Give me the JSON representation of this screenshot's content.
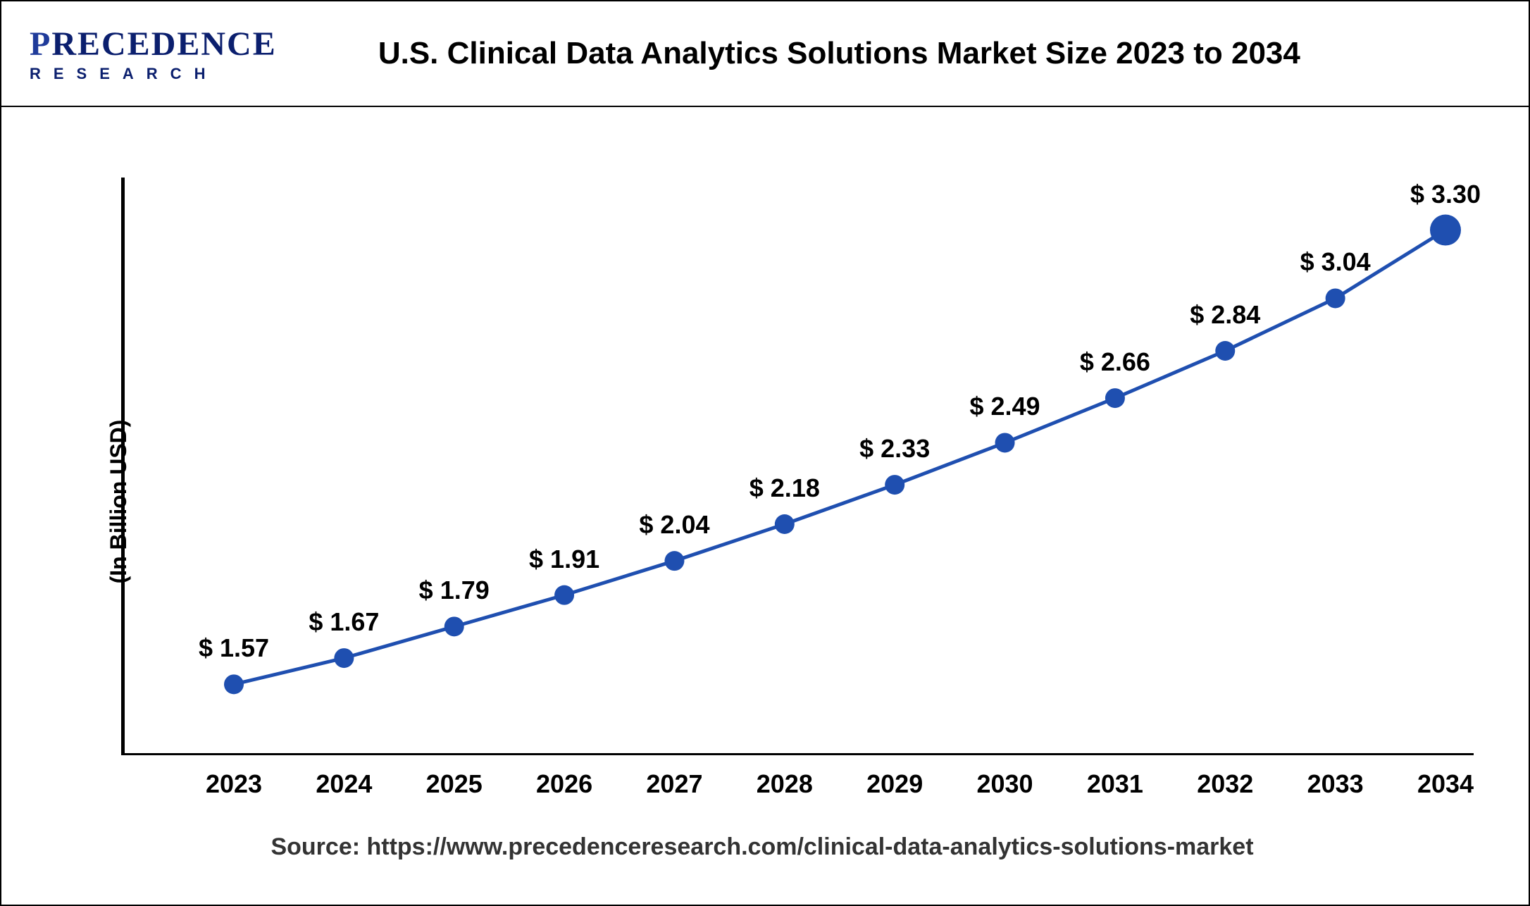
{
  "logo": {
    "brand_p": "P",
    "brand_rest": "RECEDENCE",
    "subtext": "RESEARCH"
  },
  "title": "U.S. Clinical Data Analytics Solutions Market Size 2023 to 2034",
  "y_axis_label": "(In Billion USD)",
  "source_text": "Source: https://www.precedenceresearch.com/clinical-data-analytics-solutions-market",
  "chart": {
    "type": "line",
    "years": [
      "2023",
      "2024",
      "2025",
      "2026",
      "2027",
      "2028",
      "2029",
      "2030",
      "2031",
      "2032",
      "2033",
      "2034"
    ],
    "values": [
      1.57,
      1.67,
      1.79,
      1.91,
      2.04,
      2.18,
      2.33,
      2.49,
      2.66,
      2.84,
      3.04,
      3.3
    ],
    "value_labels": [
      "$ 1.57",
      "$ 1.67",
      "$ 1.79",
      "$ 1.91",
      "$ 2.04",
      "$ 2.18",
      "$ 2.33",
      "$ 2.49",
      "$ 2.66",
      "$ 2.84",
      "$ 3.04",
      "$ 3.30"
    ],
    "line_color": "#1f4fb0",
    "marker_color": "#1f4fb0",
    "marker_size": 14,
    "last_marker_size": 22,
    "line_width": 5,
    "ymin": 1.3,
    "ymax": 3.5,
    "background_color": "#ffffff",
    "label_fontsize": 36,
    "axis_fontsize": 36
  }
}
